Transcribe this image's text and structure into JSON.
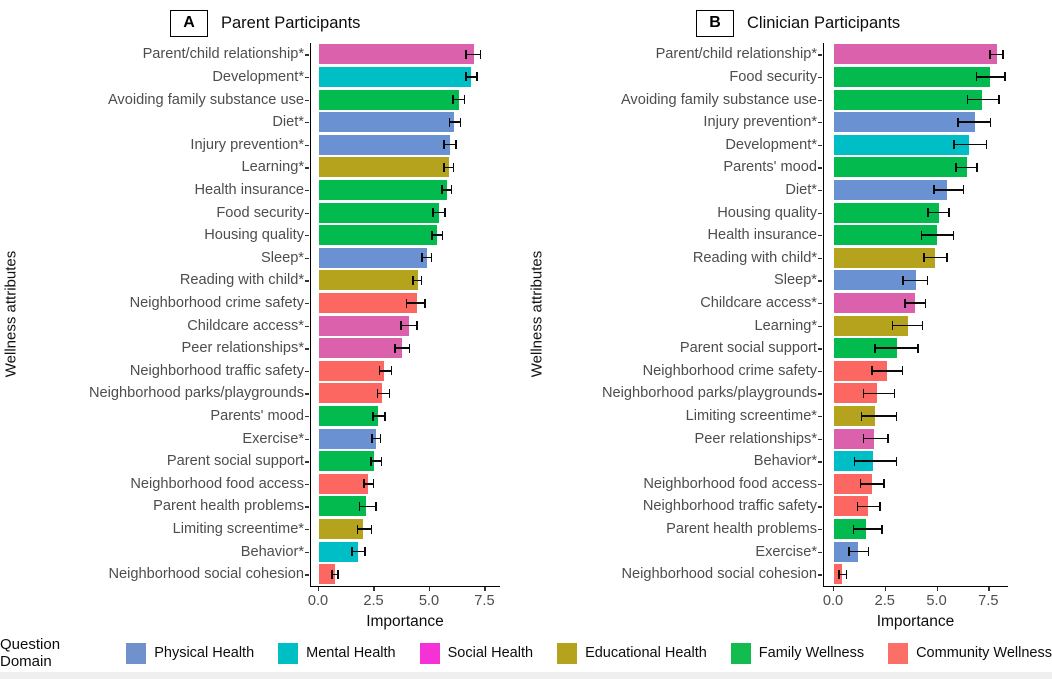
{
  "legend": {
    "title": "Question Domain",
    "items": [
      {
        "label": "Physical Health",
        "color": "#7191CC"
      },
      {
        "label": "Mental Health",
        "color": "#00BFC4"
      },
      {
        "label": "Social Health",
        "color": "#F531D8"
      },
      {
        "label": "Educational Health",
        "color": "#B5A31E"
      },
      {
        "label": "Family Wellness",
        "color": "#12BC4F"
      },
      {
        "label": "Community Wellness",
        "color": "#FB6F66"
      }
    ]
  },
  "domain_colors": {
    "Physical Health": "#6A91D1",
    "Mental Health": "#00BEC6",
    "Social Health": "#DB61AC",
    "Educational Health": "#B5A31E",
    "Family Wellness": "#02BA4D",
    "Community Wellness": "#FC6762"
  },
  "chart_data": [
    {
      "type": "bar",
      "orientation": "horizontal",
      "panel_tag": "A",
      "title": "Parent Participants",
      "xlabel": "Importance",
      "ylabel": "Wellness attributes",
      "xlim": [
        0,
        8.2
      ],
      "xticks": [
        0.0,
        2.5,
        5.0,
        7.5
      ],
      "grid": false,
      "error_bars": true,
      "legend_position": "bottom",
      "bars": [
        {
          "label": "Parent/child relationship*",
          "domain": "Social Health",
          "value": 7.0,
          "ci": [
            6.6,
            7.3
          ]
        },
        {
          "label": "Development*",
          "domain": "Mental Health",
          "value": 6.85,
          "ci": [
            6.6,
            7.15
          ]
        },
        {
          "label": "Avoiding family substance use",
          "domain": "Family Wellness",
          "value": 6.3,
          "ci": [
            6.0,
            6.6
          ]
        },
        {
          "label": "Diet*",
          "domain": "Physical Health",
          "value": 6.1,
          "ci": [
            5.85,
            6.4
          ]
        },
        {
          "label": "Injury prevention*",
          "domain": "Physical Health",
          "value": 5.9,
          "ci": [
            5.6,
            6.2
          ]
        },
        {
          "label": "Learning*",
          "domain": "Educational Health",
          "value": 5.85,
          "ci": [
            5.6,
            6.1
          ]
        },
        {
          "label": "Health insurance",
          "domain": "Family Wellness",
          "value": 5.75,
          "ci": [
            5.5,
            6.0
          ]
        },
        {
          "label": "Food security",
          "domain": "Family Wellness",
          "value": 5.4,
          "ci": [
            5.1,
            5.7
          ]
        },
        {
          "label": "Housing quality",
          "domain": "Family Wellness",
          "value": 5.3,
          "ci": [
            5.05,
            5.6
          ]
        },
        {
          "label": "Sleep*",
          "domain": "Physical Health",
          "value": 4.85,
          "ci": [
            4.6,
            5.1
          ]
        },
        {
          "label": "Reading with child*",
          "domain": "Educational Health",
          "value": 4.45,
          "ci": [
            4.2,
            4.65
          ]
        },
        {
          "label": "Neighborhood crime safety",
          "domain": "Community Wellness",
          "value": 4.4,
          "ci": [
            3.9,
            4.8
          ]
        },
        {
          "label": "Childcare access*",
          "domain": "Social Health",
          "value": 4.05,
          "ci": [
            3.65,
            4.45
          ]
        },
        {
          "label": "Peer relationships*",
          "domain": "Social Health",
          "value": 3.75,
          "ci": [
            3.4,
            4.1
          ]
        },
        {
          "label": "Neighborhood traffic safety",
          "domain": "Community Wellness",
          "value": 2.95,
          "ci": [
            2.7,
            3.3
          ]
        },
        {
          "label": "Neighborhood parks/playgrounds",
          "domain": "Community Wellness",
          "value": 2.85,
          "ci": [
            2.6,
            3.2
          ]
        },
        {
          "label": "Parents' mood",
          "domain": "Family Wellness",
          "value": 2.65,
          "ci": [
            2.4,
            3.0
          ]
        },
        {
          "label": "Exercise*",
          "domain": "Physical Health",
          "value": 2.55,
          "ci": [
            2.35,
            2.8
          ]
        },
        {
          "label": "Parent social support",
          "domain": "Family Wellness",
          "value": 2.5,
          "ci": [
            2.3,
            2.85
          ]
        },
        {
          "label": "Neighborhood food access",
          "domain": "Community Wellness",
          "value": 2.2,
          "ci": [
            2.0,
            2.5
          ]
        },
        {
          "label": "Parent health problems",
          "domain": "Family Wellness",
          "value": 2.1,
          "ci": [
            1.8,
            2.6
          ]
        },
        {
          "label": "Limiting screentime*",
          "domain": "Educational Health",
          "value": 2.0,
          "ci": [
            1.7,
            2.4
          ]
        },
        {
          "label": "Behavior*",
          "domain": "Mental Health",
          "value": 1.75,
          "ci": [
            1.45,
            2.1
          ]
        },
        {
          "label": "Neighborhood social cohesion",
          "domain": "Community Wellness",
          "value": 0.7,
          "ci": [
            0.55,
            0.9
          ]
        }
      ]
    },
    {
      "type": "bar",
      "orientation": "horizontal",
      "panel_tag": "B",
      "title": "Clinician Participants",
      "xlabel": "Importance",
      "ylabel": "Wellness attributes",
      "xlim": [
        0,
        8.45
      ],
      "xticks": [
        0.0,
        2.5,
        5.0,
        7.5
      ],
      "grid": false,
      "error_bars": true,
      "legend_position": "bottom",
      "bars": [
        {
          "label": "Parent/child relationship*",
          "domain": "Social Health",
          "value": 7.85,
          "ci": [
            7.5,
            8.2
          ]
        },
        {
          "label": "Food security",
          "domain": "Family Wellness",
          "value": 7.55,
          "ci": [
            6.85,
            8.3
          ]
        },
        {
          "label": "Avoiding family substance use",
          "domain": "Family Wellness",
          "value": 7.15,
          "ci": [
            6.4,
            8.0
          ]
        },
        {
          "label": "Injury prevention*",
          "domain": "Physical Health",
          "value": 6.8,
          "ci": [
            5.95,
            7.6
          ]
        },
        {
          "label": "Development*",
          "domain": "Mental Health",
          "value": 6.5,
          "ci": [
            5.75,
            7.4
          ]
        },
        {
          "label": "Parents' mood",
          "domain": "Family Wellness",
          "value": 6.4,
          "ci": [
            5.85,
            6.95
          ]
        },
        {
          "label": "Diet*",
          "domain": "Physical Health",
          "value": 5.45,
          "ci": [
            4.8,
            6.3
          ]
        },
        {
          "label": "Housing quality",
          "domain": "Family Wellness",
          "value": 5.05,
          "ci": [
            4.5,
            5.6
          ]
        },
        {
          "label": "Health insurance",
          "domain": "Family Wellness",
          "value": 4.95,
          "ci": [
            4.2,
            5.8
          ]
        },
        {
          "label": "Reading with child*",
          "domain": "Educational Health",
          "value": 4.9,
          "ci": [
            4.3,
            5.5
          ]
        },
        {
          "label": "Sleep*",
          "domain": "Physical Health",
          "value": 3.95,
          "ci": [
            3.3,
            4.55
          ]
        },
        {
          "label": "Childcare access*",
          "domain": "Social Health",
          "value": 3.9,
          "ci": [
            3.4,
            4.45
          ]
        },
        {
          "label": "Learning*",
          "domain": "Educational Health",
          "value": 3.55,
          "ci": [
            2.8,
            4.3
          ]
        },
        {
          "label": "Parent social support",
          "domain": "Family Wellness",
          "value": 3.05,
          "ci": [
            1.95,
            4.1
          ]
        },
        {
          "label": "Neighborhood crime safety",
          "domain": "Community Wellness",
          "value": 2.55,
          "ci": [
            1.8,
            3.35
          ]
        },
        {
          "label": "Neighborhood parks/playgrounds",
          "domain": "Community Wellness",
          "value": 2.1,
          "ci": [
            1.4,
            2.95
          ]
        },
        {
          "label": "Limiting screentime*",
          "domain": "Educational Health",
          "value": 2.0,
          "ci": [
            1.3,
            3.05
          ]
        },
        {
          "label": "Peer relationships*",
          "domain": "Social Health",
          "value": 1.95,
          "ci": [
            1.4,
            2.65
          ]
        },
        {
          "label": "Behavior*",
          "domain": "Mental Health",
          "value": 1.9,
          "ci": [
            0.95,
            3.05
          ]
        },
        {
          "label": "Neighborhood food access",
          "domain": "Community Wellness",
          "value": 1.85,
          "ci": [
            1.25,
            2.45
          ]
        },
        {
          "label": "Neighborhood traffic safety",
          "domain": "Community Wellness",
          "value": 1.65,
          "ci": [
            1.1,
            2.25
          ]
        },
        {
          "label": "Parent health problems",
          "domain": "Family Wellness",
          "value": 1.55,
          "ci": [
            0.9,
            2.35
          ]
        },
        {
          "label": "Exercise*",
          "domain": "Physical Health",
          "value": 1.15,
          "ci": [
            0.7,
            1.7
          ]
        },
        {
          "label": "Neighborhood social cohesion",
          "domain": "Community Wellness",
          "value": 0.4,
          "ci": [
            0.2,
            0.65
          ]
        }
      ]
    }
  ]
}
